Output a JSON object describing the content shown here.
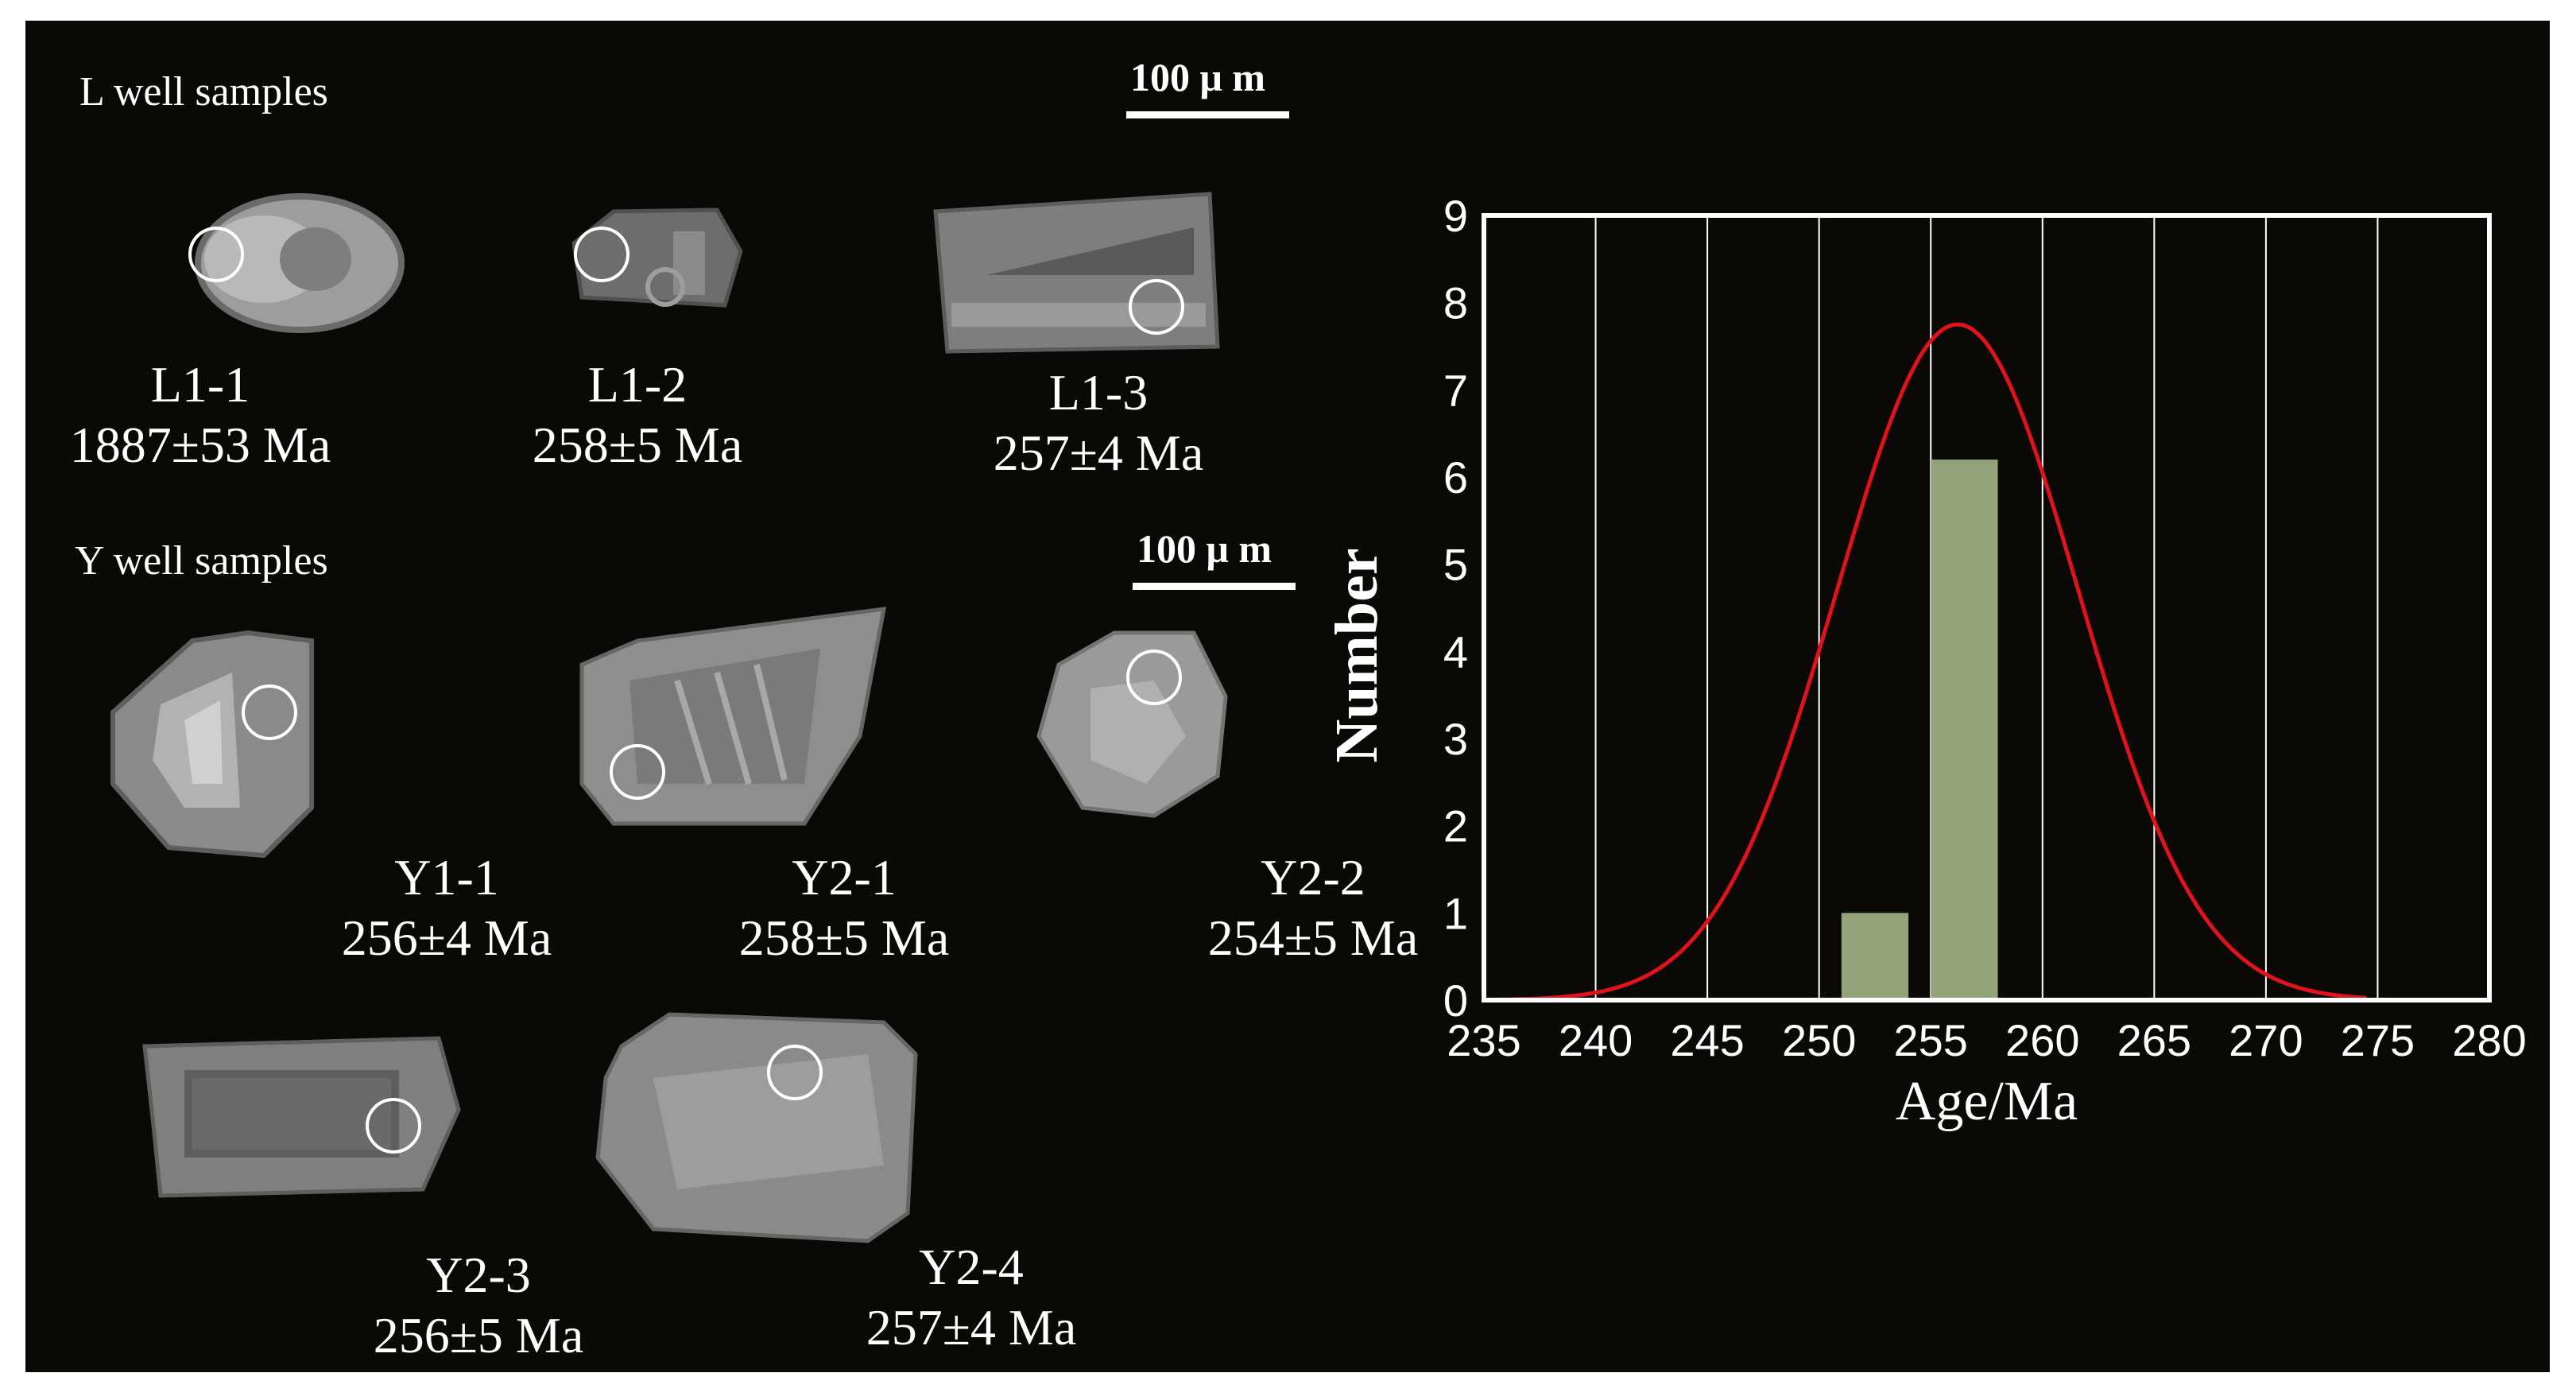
{
  "sections": {
    "l_well": "L well samples",
    "y_well": "Y well samples",
    "scale_label_top": "100 μ m",
    "scale_label_bottom": "100 μ m"
  },
  "grains": [
    {
      "id": "L1-1",
      "age": "1887±53 Ma"
    },
    {
      "id": "L1-2",
      "age": "258±5 Ma"
    },
    {
      "id": "L1-3",
      "age": "257±4 Ma"
    },
    {
      "id": "Y1-1",
      "age": "256±4 Ma"
    },
    {
      "id": "Y2-1",
      "age": "258±5 Ma"
    },
    {
      "id": "Y2-2",
      "age": "254±5 Ma"
    },
    {
      "id": "Y2-3",
      "age": "256±5 Ma"
    },
    {
      "id": "Y2-4",
      "age": "257±4 Ma"
    }
  ],
  "colors": {
    "background": "#0b0906",
    "bar": "#94a27a",
    "curve": "#e0121b",
    "grid": "#ffffff",
    "text": "#ffffff"
  },
  "chart_data": {
    "type": "bar",
    "xlabel": "Age/Ma",
    "ylabel": "Number",
    "xlim": [
      235,
      280
    ],
    "ylim": [
      0,
      9
    ],
    "x_ticks": [
      "235",
      "240",
      "245",
      "250",
      "255",
      "260",
      "265",
      "270",
      "275",
      "280"
    ],
    "y_ticks": [
      "0",
      "1",
      "2",
      "3",
      "4",
      "5",
      "6",
      "7",
      "8",
      "9"
    ],
    "grid": "vertical",
    "bars": [
      {
        "x_start": 251.0,
        "x_end": 254.0,
        "value": 1
      },
      {
        "x_start": 255.0,
        "x_end": 258.0,
        "value": 6.2
      }
    ],
    "curve": {
      "type": "normal",
      "mean": 256.2,
      "sd": 5.4,
      "peak": 7.75
    }
  }
}
